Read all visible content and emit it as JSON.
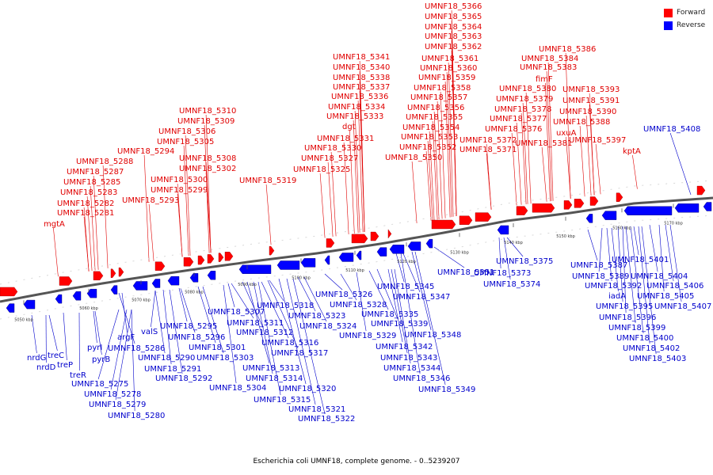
{
  "legend": {
    "forward": {
      "label": "Forward",
      "color": "#ff0000"
    },
    "reverse": {
      "label": "Reverse",
      "color": "#0000ff"
    }
  },
  "caption": "Escherichia coli UMNF18, complete genome. - 0..5239207",
  "ticks": [
    "5050 kbp",
    "5060 kbp",
    "5070 kbp",
    "5080 kbp",
    "5090 kbp",
    "5100 kbp",
    "5110 kbp",
    "5120 kbp",
    "5130 kbp",
    "5140 kbp",
    "5150 kbp",
    "5160 kbp",
    "5170 kbp"
  ],
  "forward_labels": [
    "mgtA",
    "UMNF18_5281",
    "UMNF18_5282",
    "UMNF18_5283",
    "UMNF18_5285",
    "UMNF18_5287",
    "UMNF18_5288",
    "UMNF18_5294",
    "UMNF18_5293",
    "UMNF18_5299",
    "UMNF18_5300",
    "UMNF18_5302",
    "UMNF18_5305",
    "UMNF18_5306",
    "UMNF18_5309",
    "UMNF18_5310",
    "UMNF18_5308",
    "UMNF18_5319",
    "UMNF18_5325",
    "UMNF18_5327",
    "UMNF18_5330",
    "UMNF18_5331",
    "dgt",
    "UMNF18_5333",
    "UMNF18_5334",
    "UMNF18_5336",
    "UMNF18_5337",
    "UMNF18_5338",
    "UMNF18_5340",
    "UMNF18_5341",
    "UMNF18_5350",
    "UMNF18_5352",
    "UMNF18_5353",
    "UMNF18_5354",
    "UMNF18_5355",
    "UMNF18_5356",
    "UMNF18_5357",
    "UMNF18_5358",
    "UMNF18_5359",
    "UMNF18_5360",
    "UMNF18_5361",
    "UMNF18_5362",
    "UMNF18_5363",
    "UMNF18_5364",
    "UMNF18_5365",
    "UMNF18_5366",
    "UMNF18_5371",
    "UMNF18_5372",
    "UMNF18_5376",
    "UMNF18_5377",
    "UMNF18_5378",
    "UMNF18_5379",
    "UMNF18_5380",
    "fimF",
    "UMNF18_5383",
    "UMNF18_5384",
    "UMNF18_5386",
    "UMNF18_5381",
    "uxuA",
    "UMNF18_5388",
    "UMNF18_5390",
    "UMNF18_5391",
    "UMNF18_5393",
    "UMNF18_5397",
    "kptA"
  ],
  "reverse_labels": [
    "nrdG",
    "treC",
    "nrdD",
    "treP",
    "treR",
    "pyrI",
    "pyrB",
    "UMNF18_5275",
    "UMNF18_5278",
    "UMNF18_5279",
    "UMNF18_5280",
    "argF",
    "UMNF18_5286",
    "valS",
    "UMNF18_5290",
    "UMNF18_5291",
    "UMNF18_5292",
    "UMNF18_5295",
    "UMNF18_5296",
    "UMNF18_5301",
    "UMNF18_5303",
    "UMNF18_5304",
    "UMNF18_5307",
    "UMNF18_5311",
    "UMNF18_5312",
    "UMNF18_5313",
    "UMNF18_5314",
    "UMNF18_5315",
    "UMNF18_5316",
    "UMNF18_5317",
    "UMNF18_5318",
    "UMNF18_5320",
    "UMNF18_5321",
    "UMNF18_5322",
    "UMNF18_5323",
    "UMNF18_5324",
    "UMNF18_5326",
    "UMNF18_5328",
    "UMNF18_5329",
    "UMNF18_5335",
    "UMNF18_5339",
    "UMNF18_5342",
    "UMNF18_5343",
    "UMNF18_5344",
    "UMNF18_5345",
    "UMNF18_5346",
    "UMNF18_5347",
    "UMNF18_5348",
    "UMNF18_5349",
    "UMNF18_5351",
    "UMNF18_5373",
    "UMNF18_5374",
    "UMNF18_5375",
    "UMNF18_5387",
    "UMNF18_5389",
    "UMNF18_5392",
    "iadA",
    "UMNF18_5395",
    "UMNF18_5396",
    "UMNF18_5399",
    "UMNF18_5400",
    "UMNF18_5401",
    "UMNF18_5402",
    "UMNF18_5403",
    "UMNF18_5404",
    "UMNF18_5405",
    "UMNF18_5406",
    "UMNF18_5407",
    "UMNF18_5408"
  ]
}
